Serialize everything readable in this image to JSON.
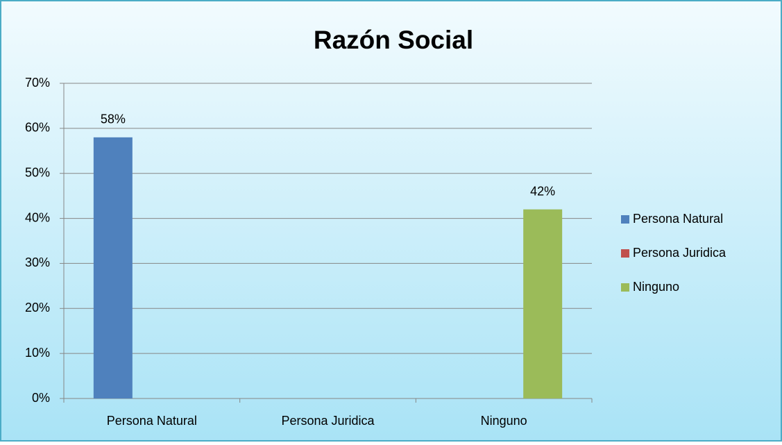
{
  "chart_data": {
    "type": "bar",
    "title": "Razón Social",
    "categories": [
      "Persona Natural",
      "Persona Juridica",
      "Ninguno"
    ],
    "series": [
      {
        "name": "Persona Natural",
        "color": "#4f81bd",
        "values": [
          58,
          null,
          null
        ],
        "value_labels": [
          "58%",
          null,
          null
        ]
      },
      {
        "name": "Persona Juridica",
        "color": "#c0504d",
        "values": [
          null,
          0,
          null
        ],
        "value_labels": [
          null,
          null,
          null
        ]
      },
      {
        "name": "Ninguno",
        "color": "#9bbb59",
        "values": [
          null,
          null,
          42
        ],
        "value_labels": [
          null,
          null,
          "42%"
        ]
      }
    ],
    "ylim": [
      0,
      70
    ],
    "yticks": [
      {
        "value": 0,
        "label": "0%"
      },
      {
        "value": 10,
        "label": "10%"
      },
      {
        "value": 20,
        "label": "20%"
      },
      {
        "value": 30,
        "label": "30%"
      },
      {
        "value": 40,
        "label": "40%"
      },
      {
        "value": 50,
        "label": "50%"
      },
      {
        "value": 60,
        "label": "60%"
      },
      {
        "value": 70,
        "label": "70%"
      }
    ],
    "grid": true,
    "legend": "right"
  }
}
